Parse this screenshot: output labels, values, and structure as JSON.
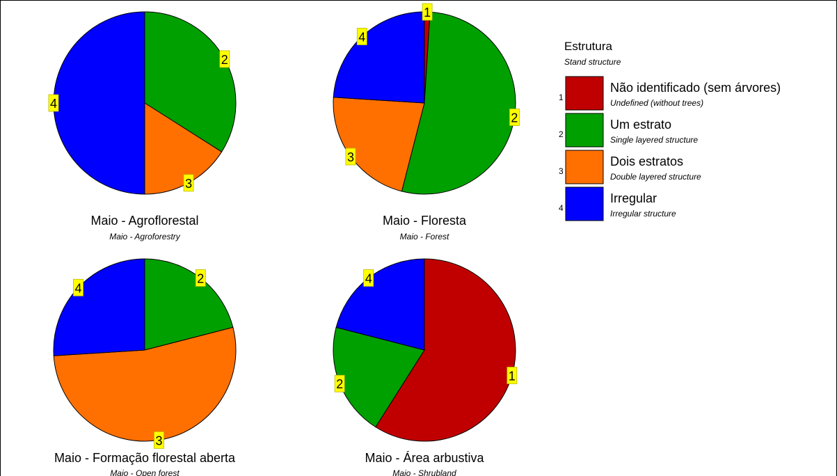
{
  "chart_data": {
    "type": "pie",
    "legend": {
      "title": "Estrutura",
      "subtitle": "Stand structure",
      "position": "top-right",
      "entries": [
        {
          "num": "1",
          "label": "Não identificado (sem árvores)",
          "sublabel": "Undefined (without trees)",
          "color": "#c00000"
        },
        {
          "num": "2",
          "label": "Um estrato",
          "sublabel": "Single layered structure",
          "color": "#00a000"
        },
        {
          "num": "3",
          "label": "Dois estratos",
          "sublabel": "Double layered structure",
          "color": "#ff7000"
        },
        {
          "num": "4",
          "label": "Irregular",
          "sublabel": "Irregular structure",
          "color": "#0000ff"
        }
      ]
    },
    "charts": [
      {
        "title": "Maio - Agroflorestal",
        "subtitle": "Maio - Agroforestry",
        "slices": [
          {
            "category": "2",
            "value": 34
          },
          {
            "category": "3",
            "value": 16
          },
          {
            "category": "4",
            "value": 50
          }
        ]
      },
      {
        "title": "Maio - Floresta",
        "subtitle": "Maio - Forest",
        "slices": [
          {
            "category": "1",
            "value": 1
          },
          {
            "category": "2",
            "value": 53
          },
          {
            "category": "3",
            "value": 22
          },
          {
            "category": "4",
            "value": 24
          }
        ]
      },
      {
        "title": "Maio - Formação florestal aberta",
        "subtitle": "Maio - Open forest",
        "slices": [
          {
            "category": "2",
            "value": 21
          },
          {
            "category": "3",
            "value": 53
          },
          {
            "category": "4",
            "value": 26
          }
        ]
      },
      {
        "title": "Maio - Área arbustiva",
        "subtitle": "Maio - Shrubland",
        "slices": [
          {
            "category": "1",
            "value": 59
          },
          {
            "category": "2",
            "value": 20
          },
          {
            "category": "4",
            "value": 21
          }
        ]
      }
    ]
  }
}
